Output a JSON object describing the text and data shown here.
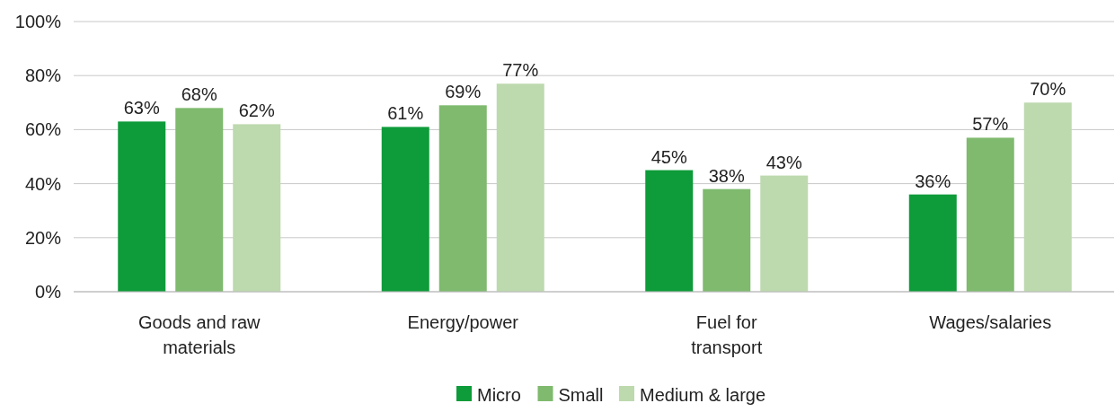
{
  "chart_data": {
    "type": "bar",
    "categories": [
      "Goods and raw materials",
      "Energy/power",
      "Fuel for transport",
      "Wages/salaries"
    ],
    "series": [
      {
        "name": "Micro",
        "color": "#0e9b3a",
        "values": [
          63,
          61,
          45,
          36
        ],
        "value_labels": [
          "63%",
          "61%",
          "45%",
          "36%"
        ]
      },
      {
        "name": "Small",
        "color": "#7fba6e",
        "values": [
          68,
          69,
          38,
          57
        ],
        "value_labels": [
          "68%",
          "69%",
          "38%",
          "57%"
        ]
      },
      {
        "name": "Medium & large",
        "color": "#bdd9ae",
        "values": [
          62,
          77,
          43,
          70
        ],
        "value_labels": [
          "62%",
          "77%",
          "43%",
          "70%"
        ]
      }
    ],
    "ylim": [
      0,
      100
    ],
    "yticks": [
      {
        "value": 0,
        "label": "0%"
      },
      {
        "value": 20,
        "label": "20%"
      },
      {
        "value": 40,
        "label": "40%"
      },
      {
        "value": 60,
        "label": "60%"
      },
      {
        "value": 80,
        "label": "80%"
      },
      {
        "value": 100,
        "label": "100%"
      }
    ],
    "grid": "y",
    "legend": "bottom"
  }
}
